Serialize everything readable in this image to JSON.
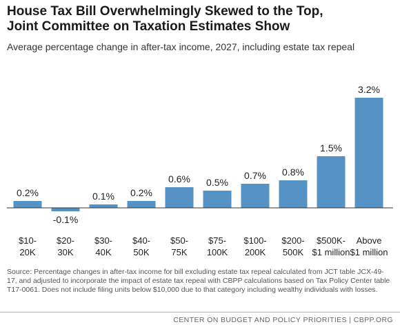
{
  "title_line1": "House Tax Bill Overwhelmingly Skewed to the Top,",
  "title_line2": "Joint Committee on Taxation Estimates Show",
  "subtitle": "Average percentage change in after-tax income, 2027, including estate tax repeal",
  "source": "Source: Percentage changes in after-tax income for bill excluding estate tax repeal calculated from JCT table JCX-49-17, and adjusted to incorporate the impact of estate tax repeal with CBPP calculations based on Tax Policy Center table T17-0061. Does not include filing units below $10,000 due to that category including wealthy individuals with losses.",
  "footer": "CENTER ON BUDGET AND POLICY PRIORITIES | CBPP.ORG",
  "colors": {
    "bar": "#5592c6",
    "axis": "#333333"
  },
  "chart_data": {
    "type": "bar",
    "title": "House Tax Bill Overwhelmingly Skewed to the Top, Joint Committee on Taxation Estimates Show",
    "subtitle": "Average percentage change in after-tax income, 2027, including estate tax repeal",
    "categories": [
      [
        "$10-",
        "20K"
      ],
      [
        "$20-",
        "30K"
      ],
      [
        "$30-",
        "40K"
      ],
      [
        "$40-",
        "50K"
      ],
      [
        "$50-",
        "75K"
      ],
      [
        "$75-",
        "100K"
      ],
      [
        "$100-",
        "200K"
      ],
      [
        "$200-",
        "500K"
      ],
      [
        "$500K-",
        "$1 million"
      ],
      [
        "Above",
        "$1 million"
      ]
    ],
    "values": [
      0.2,
      -0.1,
      0.1,
      0.2,
      0.6,
      0.5,
      0.7,
      0.8,
      1.5,
      3.2
    ],
    "value_labels": [
      "0.2%",
      "-0.1%",
      "0.1%",
      "0.2%",
      "0.6%",
      "0.5%",
      "0.7%",
      "0.8%",
      "1.5%",
      "3.2%"
    ],
    "ylim": [
      -0.1,
      3.2
    ],
    "grid": false,
    "legend": "none"
  }
}
